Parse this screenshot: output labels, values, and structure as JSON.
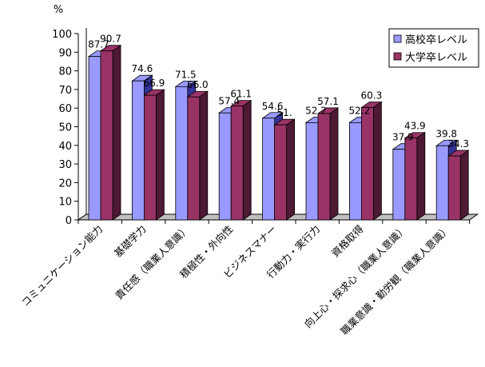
{
  "chart_data": {
    "type": "bar",
    "style": "3d-clustered-column",
    "ylabel": "%",
    "ylim": [
      0,
      100
    ],
    "ytick_step": 10,
    "yticks": [
      "0",
      "10",
      "20",
      "30",
      "40",
      "50",
      "60",
      "70",
      "80",
      "90",
      "100"
    ],
    "grid": false,
    "legend_position": "top-right",
    "categories": [
      "コミュニケーション能力",
      "基礎学力",
      "責任感（職業人意識）",
      "積極性・外向性",
      "ビジネスマナー",
      "行動力・実行力",
      "資格取得",
      "向上心・探求心（職業人意識）",
      "職業意識・勤労観（職業人意識）"
    ],
    "series": [
      {
        "name": "高校卒レベル",
        "color": "#9999ff",
        "side_color": "#333399",
        "values": [
          87.7,
          74.6,
          71.5,
          57.4,
          54.6,
          52.2,
          52.2,
          37.9,
          39.8
        ],
        "labels": [
          "87.7",
          "74.6",
          "71.5",
          "57.4",
          "54.6",
          "52.2",
          "52.2",
          "37.9",
          "39.8"
        ]
      },
      {
        "name": "大学卒レベル",
        "color": "#993366",
        "side_color": "#4d1933",
        "values": [
          90.7,
          66.9,
          66.0,
          61.1,
          51.0,
          57.1,
          60.3,
          43.9,
          34.3
        ],
        "labels": [
          "90.7",
          "66.9",
          "66.0",
          "61.1",
          "51.",
          "57.1",
          "60.3",
          "43.9",
          "34.3"
        ]
      }
    ]
  }
}
